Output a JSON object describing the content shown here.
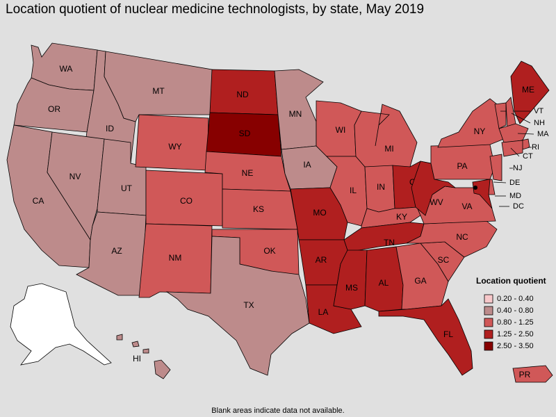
{
  "title": "Location quotient of nuclear medicine technologists, by state, May 2019",
  "note": "Blank areas indicate data not available.",
  "legend": {
    "title": "Location quotient",
    "items": [
      {
        "label": "0.20 - 0.40",
        "color": "#f7c8ca"
      },
      {
        "label": "0.40 - 0.80",
        "color": "#bd8b8b"
      },
      {
        "label": "0.80 - 1.25",
        "color": "#d05858"
      },
      {
        "label": "1.25 - 2.50",
        "color": "#b01f1f"
      },
      {
        "label": "2.50 - 3.50",
        "color": "#870000"
      }
    ]
  },
  "states": [
    {
      "label": "WA",
      "class": 1
    },
    {
      "label": "OR",
      "class": 1
    },
    {
      "label": "CA",
      "class": 1
    },
    {
      "label": "ID",
      "class": 1
    },
    {
      "label": "NV",
      "class": 1
    },
    {
      "label": "UT",
      "class": 1
    },
    {
      "label": "AZ",
      "class": 1
    },
    {
      "label": "MT",
      "class": 1
    },
    {
      "label": "WY",
      "class": 2
    },
    {
      "label": "CO",
      "class": 2
    },
    {
      "label": "NM",
      "class": 2
    },
    {
      "label": "ND",
      "class": 3
    },
    {
      "label": "SD",
      "class": 4
    },
    {
      "label": "NE",
      "class": 2
    },
    {
      "label": "KS",
      "class": 2
    },
    {
      "label": "OK",
      "class": 2
    },
    {
      "label": "TX",
      "class": 1
    },
    {
      "label": "MN",
      "class": 1
    },
    {
      "label": "IA",
      "class": 1
    },
    {
      "label": "MO",
      "class": 3
    },
    {
      "label": "AR",
      "class": 3
    },
    {
      "label": "LA",
      "class": 3
    },
    {
      "label": "WI",
      "class": 2
    },
    {
      "label": "IL",
      "class": 2
    },
    {
      "label": "MI",
      "class": 2
    },
    {
      "label": "IN",
      "class": 2
    },
    {
      "label": "OH",
      "class": 3
    },
    {
      "label": "KY",
      "class": 2
    },
    {
      "label": "TN",
      "class": 3
    },
    {
      "label": "MS",
      "class": 3
    },
    {
      "label": "AL",
      "class": 3
    },
    {
      "label": "GA",
      "class": 2
    },
    {
      "label": "FL",
      "class": 3
    },
    {
      "label": "SC",
      "class": 2
    },
    {
      "label": "NC",
      "class": 2
    },
    {
      "label": "VA",
      "class": 2
    },
    {
      "label": "WV",
      "class": 3
    },
    {
      "label": "PA",
      "class": 2
    },
    {
      "label": "NY",
      "class": 2
    },
    {
      "label": "ME",
      "class": 3
    },
    {
      "label": "VT",
      "class": 2
    },
    {
      "label": "NH",
      "class": 2
    },
    {
      "label": "MA",
      "class": 2
    },
    {
      "label": "RI",
      "class": 2
    },
    {
      "label": "CT",
      "class": 2
    },
    {
      "label": "NJ",
      "class": 2
    },
    {
      "label": "DE",
      "class": 2
    },
    {
      "label": "MD",
      "class": 3
    },
    {
      "label": "DC",
      "class": 3
    },
    {
      "label": "HI",
      "class": 1
    },
    {
      "label": "PR",
      "class": 2
    }
  ]
}
